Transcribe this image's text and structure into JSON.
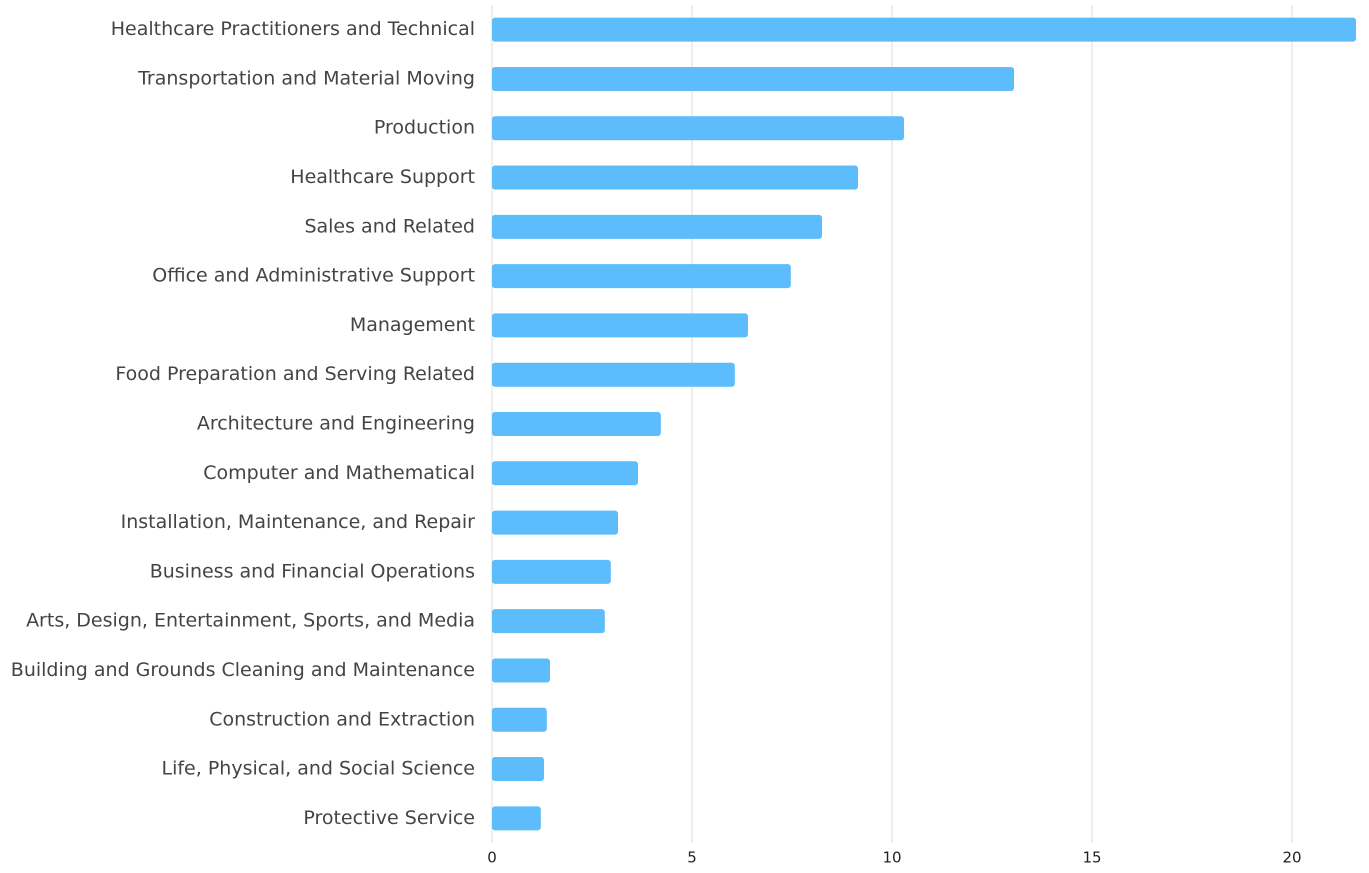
{
  "chart_data": {
    "type": "barh",
    "categories": [
      "Healthcare Practitioners and Technical",
      "Transportation and Material Moving",
      "Production",
      "Healthcare Support",
      "Sales and Related",
      "Office and Administrative Support",
      "Management",
      "Food Preparation and Serving Related",
      "Architecture and Engineering",
      "Computer and Mathematical",
      "Installation, Maintenance, and Repair",
      "Business and Financial Operations",
      "Arts, Design, Entertainment, Sports, and Media",
      "Building and Grounds Cleaning and Maintenance",
      "Construction and Extraction",
      "Life, Physical, and Social Science",
      "Protective Service"
    ],
    "values": [
      21.6,
      13.05,
      10.3,
      9.15,
      8.25,
      7.47,
      6.4,
      6.07,
      4.22,
      3.65,
      3.15,
      2.97,
      2.82,
      1.45,
      1.37,
      1.3,
      1.22
    ],
    "color": "#5cbcfc",
    "xlim": [
      0,
      21.6
    ],
    "xticks": [
      0,
      5,
      10,
      15,
      20
    ],
    "grid": true
  }
}
